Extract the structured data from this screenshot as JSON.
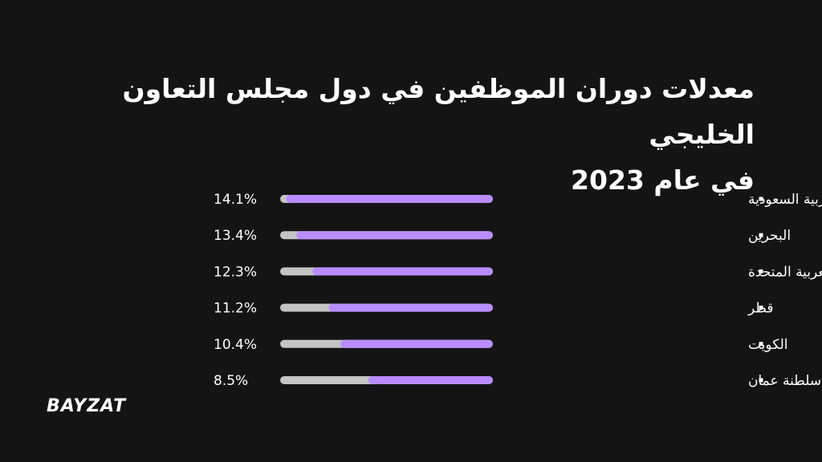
{
  "title_line1": "معدلات دوران الموظفين في دول مجلس التعاون الخليجي",
  "title_line2": "في عام 2023",
  "logo": "BAYZAT",
  "colors": {
    "background": "#141414",
    "bar_fill": "#b98cff",
    "bar_track": "#c4c4c4",
    "text": "#ffffff"
  },
  "chart_data": {
    "type": "bar",
    "orientation": "horizontal",
    "direction": "right-to-left",
    "categories": [
      "المملكة العربية السعودية",
      "البحرين",
      "الإمارات العربية المتحدة",
      "قطر",
      "الكويت",
      "سلطنة عمان"
    ],
    "values": [
      14.1,
      13.4,
      12.3,
      11.2,
      10.4,
      8.5
    ],
    "value_labels": [
      "14.1%",
      "13.4%",
      "12.3%",
      "11.2%",
      "10.4%",
      "8.5%"
    ],
    "unit": "%",
    "xlim": [
      0,
      14.5
    ]
  }
}
